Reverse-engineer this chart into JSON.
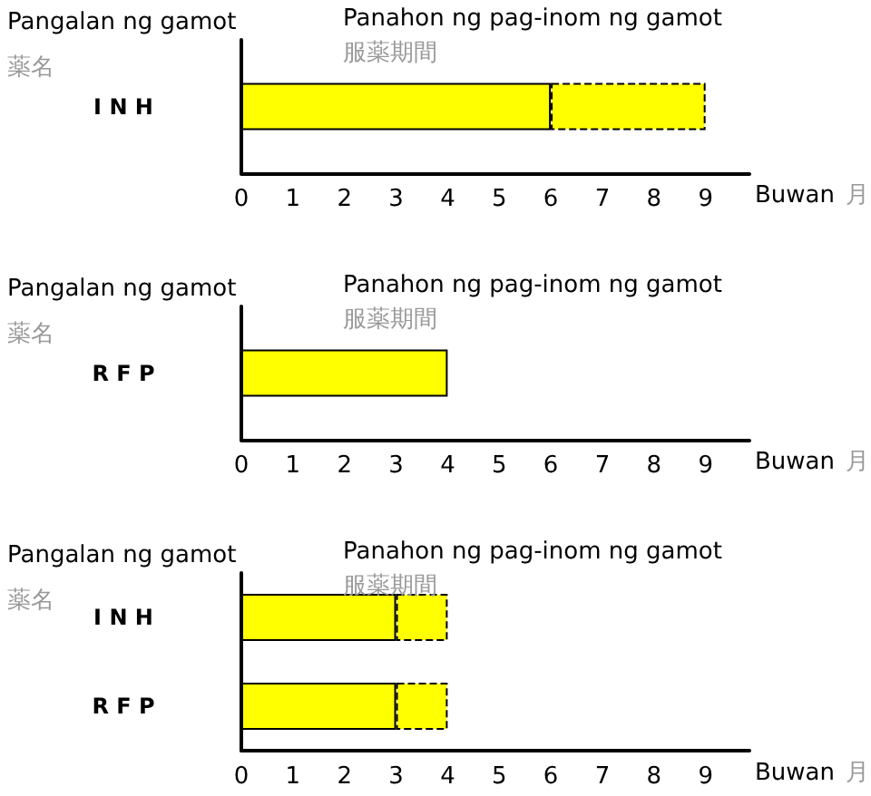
{
  "chart_data": [
    {
      "type": "bar",
      "orientation": "horizontal",
      "stacked": true,
      "title": "Panahon ng pag-inom ng gamot",
      "subtitle": "服薬期間",
      "ylabel": "Pangalan ng gamot",
      "xlabel": "Buwan",
      "annotations": [
        "薬名",
        "月"
      ],
      "categories": [
        "I N H"
      ],
      "xlim": [
        0,
        9.85
      ],
      "xticks": [
        0,
        1,
        2,
        3,
        4,
        5,
        6,
        7,
        8,
        9
      ],
      "series": [
        {
          "color": "#ffff00",
          "values": [
            6
          ]
        },
        {
          "color": "#ffff00",
          "values": [
            3
          ],
          "line_style": "dashed"
        }
      ]
    },
    {
      "type": "bar",
      "orientation": "horizontal",
      "stacked": true,
      "title": "Panahon ng pag-inom ng gamot",
      "subtitle": "服薬期間",
      "ylabel": "Pangalan ng gamot",
      "xlabel": "Buwan",
      "annotations": [
        "薬名",
        "月"
      ],
      "categories": [
        "R F P"
      ],
      "xlim": [
        0,
        9.85
      ],
      "xticks": [
        0,
        1,
        2,
        3,
        4,
        5,
        6,
        7,
        8,
        9
      ],
      "series": [
        {
          "color": "#ffff00",
          "values": [
            4
          ]
        }
      ]
    },
    {
      "type": "bar",
      "orientation": "horizontal",
      "stacked": true,
      "title": "Panahon ng pag-inom ng gamot",
      "subtitle": "服薬期間",
      "ylabel": "Pangalan ng gamot",
      "xlabel": "Buwan",
      "annotations": [
        "薬名",
        "月"
      ],
      "categories": [
        "I N H",
        "R F P"
      ],
      "xlim": [
        0,
        9.85
      ],
      "xticks": [
        0,
        1,
        2,
        3,
        4,
        5,
        6,
        7,
        8,
        9
      ],
      "series": [
        {
          "color": "#ffff00",
          "values": [
            3,
            3
          ]
        },
        {
          "color": "#ffff00",
          "values": [
            1,
            1
          ],
          "line_style": "dashed"
        }
      ]
    }
  ]
}
